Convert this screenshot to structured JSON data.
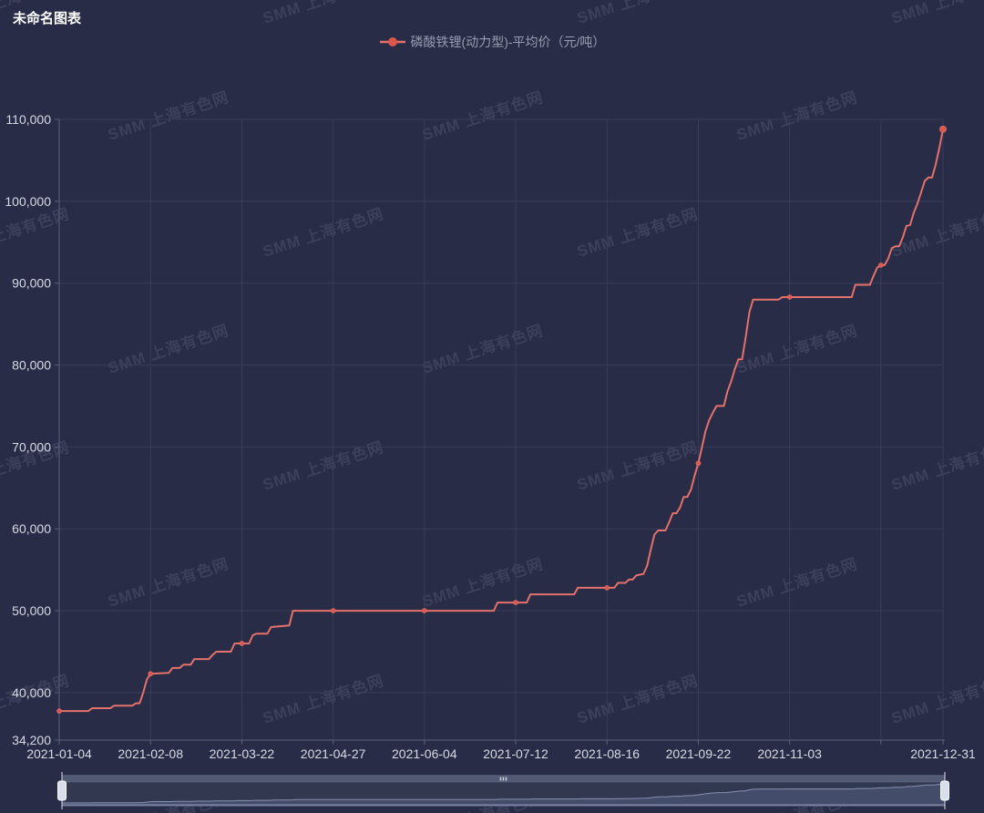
{
  "header": {
    "title": "未命名图表"
  },
  "legend": {
    "items": [
      {
        "label": "磷酸铁锂(动力型)-平均价（元/吨）",
        "color": "#e4716b"
      }
    ]
  },
  "watermark": {
    "text": "SMM 上海有色网"
  },
  "colors": {
    "background": "#282c46",
    "grid_line": "#383d5a",
    "axis_line": "#5a5f7e",
    "axis_label": "#d8dae6",
    "title_text": "#ffffff",
    "legend_text": "#989cb0",
    "series_line": "#e4716b",
    "series_marker": "#dd574c",
    "slider_track": "#313850",
    "slider_border": "#6b7290",
    "slider_move_bar": "#515973",
    "slider_grip": "#c9cede",
    "slider_shadow_fill": "#46506d",
    "slider_shadow_line": "#8791b0",
    "slider_handle_fill": "#d9deec",
    "slider_handle_stroke": "#ffffff"
  },
  "chart_data": {
    "type": "line",
    "title": "未命名图表",
    "legend_position": "top",
    "grid": true,
    "x_axis": {
      "label": "date",
      "total_points": 243,
      "tick_indices": [
        0,
        25,
        50,
        75,
        100,
        125,
        150,
        175,
        200,
        242
      ],
      "tick_labels": [
        "2021-01-04",
        "2021-02-08",
        "2021-03-22",
        "2021-04-27",
        "2021-06-04",
        "2021-07-12",
        "2021-08-16",
        "2021-09-22",
        "2021-11-03",
        "2021-12-31"
      ],
      "unlabeled_tick_indices": [
        225
      ]
    },
    "y_axis": {
      "label": "平均价（元/吨）",
      "min": 34200,
      "max": 110000,
      "tick_values": [
        34200,
        40000,
        50000,
        60000,
        70000,
        80000,
        90000,
        100000,
        110000
      ],
      "tick_labels": [
        "34,200",
        "40,000",
        "50,000",
        "60,000",
        "70,000",
        "80,000",
        "90,000",
        "100,000",
        "110,000"
      ]
    },
    "series": [
      {
        "name": "磷酸铁锂(动力型)-平均价（元/吨）",
        "unit": "元/吨",
        "color": "#e4716b",
        "start_value": 37750,
        "end_value": 108800,
        "points": [
          [
            0,
            37750
          ],
          [
            8,
            37750
          ],
          [
            9,
            38100
          ],
          [
            14,
            38100
          ],
          [
            15,
            38400
          ],
          [
            20,
            38400
          ],
          [
            21,
            38700
          ],
          [
            22,
            38700
          ],
          [
            23,
            40000
          ],
          [
            24,
            41600
          ],
          [
            25,
            42300
          ],
          [
            30,
            42400
          ],
          [
            31,
            43000
          ],
          [
            33,
            43000
          ],
          [
            34,
            43400
          ],
          [
            36,
            43400
          ],
          [
            37,
            44100
          ],
          [
            41,
            44100
          ],
          [
            42,
            44600
          ],
          [
            43,
            45000
          ],
          [
            47,
            45000
          ],
          [
            48,
            46000
          ],
          [
            52,
            46000
          ],
          [
            53,
            47000
          ],
          [
            54,
            47200
          ],
          [
            57,
            47200
          ],
          [
            58,
            48000
          ],
          [
            63,
            48200
          ],
          [
            64,
            50000
          ],
          [
            119,
            50000
          ],
          [
            120,
            51000
          ],
          [
            128,
            51000
          ],
          [
            129,
            52000
          ],
          [
            141,
            52000
          ],
          [
            142,
            52800
          ],
          [
            152,
            52800
          ],
          [
            153,
            53400
          ],
          [
            155,
            53400
          ],
          [
            156,
            53800
          ],
          [
            157,
            53800
          ],
          [
            158,
            54300
          ],
          [
            160,
            54500
          ],
          [
            161,
            55500
          ],
          [
            162,
            57500
          ],
          [
            163,
            59300
          ],
          [
            164,
            59800
          ],
          [
            166,
            59800
          ],
          [
            167,
            60800
          ],
          [
            168,
            61900
          ],
          [
            169,
            61900
          ],
          [
            170,
            62600
          ],
          [
            171,
            63900
          ],
          [
            172,
            63900
          ],
          [
            173,
            64800
          ],
          [
            174,
            66500
          ],
          [
            175,
            68000
          ],
          [
            176,
            70000
          ],
          [
            177,
            72000
          ],
          [
            178,
            73300
          ],
          [
            179,
            74200
          ],
          [
            180,
            75000
          ],
          [
            182,
            75000
          ],
          [
            183,
            76800
          ],
          [
            184,
            78000
          ],
          [
            185,
            79500
          ],
          [
            186,
            80700
          ],
          [
            187,
            80700
          ],
          [
            188,
            83500
          ],
          [
            189,
            86500
          ],
          [
            190,
            88000
          ],
          [
            197,
            88000
          ],
          [
            198,
            88300
          ],
          [
            217,
            88300
          ],
          [
            218,
            89800
          ],
          [
            222,
            89800
          ],
          [
            223,
            90900
          ],
          [
            224,
            91900
          ],
          [
            225,
            92200
          ],
          [
            226,
            92200
          ],
          [
            227,
            93000
          ],
          [
            228,
            94300
          ],
          [
            229,
            94500
          ],
          [
            230,
            94500
          ],
          [
            231,
            95600
          ],
          [
            232,
            97000
          ],
          [
            233,
            97100
          ],
          [
            234,
            98600
          ],
          [
            235,
            99700
          ],
          [
            236,
            101100
          ],
          [
            237,
            102500
          ],
          [
            238,
            102900
          ],
          [
            239,
            102900
          ],
          [
            240,
            104500
          ],
          [
            241,
            106500
          ],
          [
            242,
            108800
          ]
        ],
        "marker_indices": [
          0,
          25,
          50,
          75,
          100,
          125,
          150,
          175,
          200,
          225,
          242
        ]
      }
    ],
    "data_zoom_slider": {
      "range_start_pct": 0,
      "range_end_pct": 100
    }
  }
}
